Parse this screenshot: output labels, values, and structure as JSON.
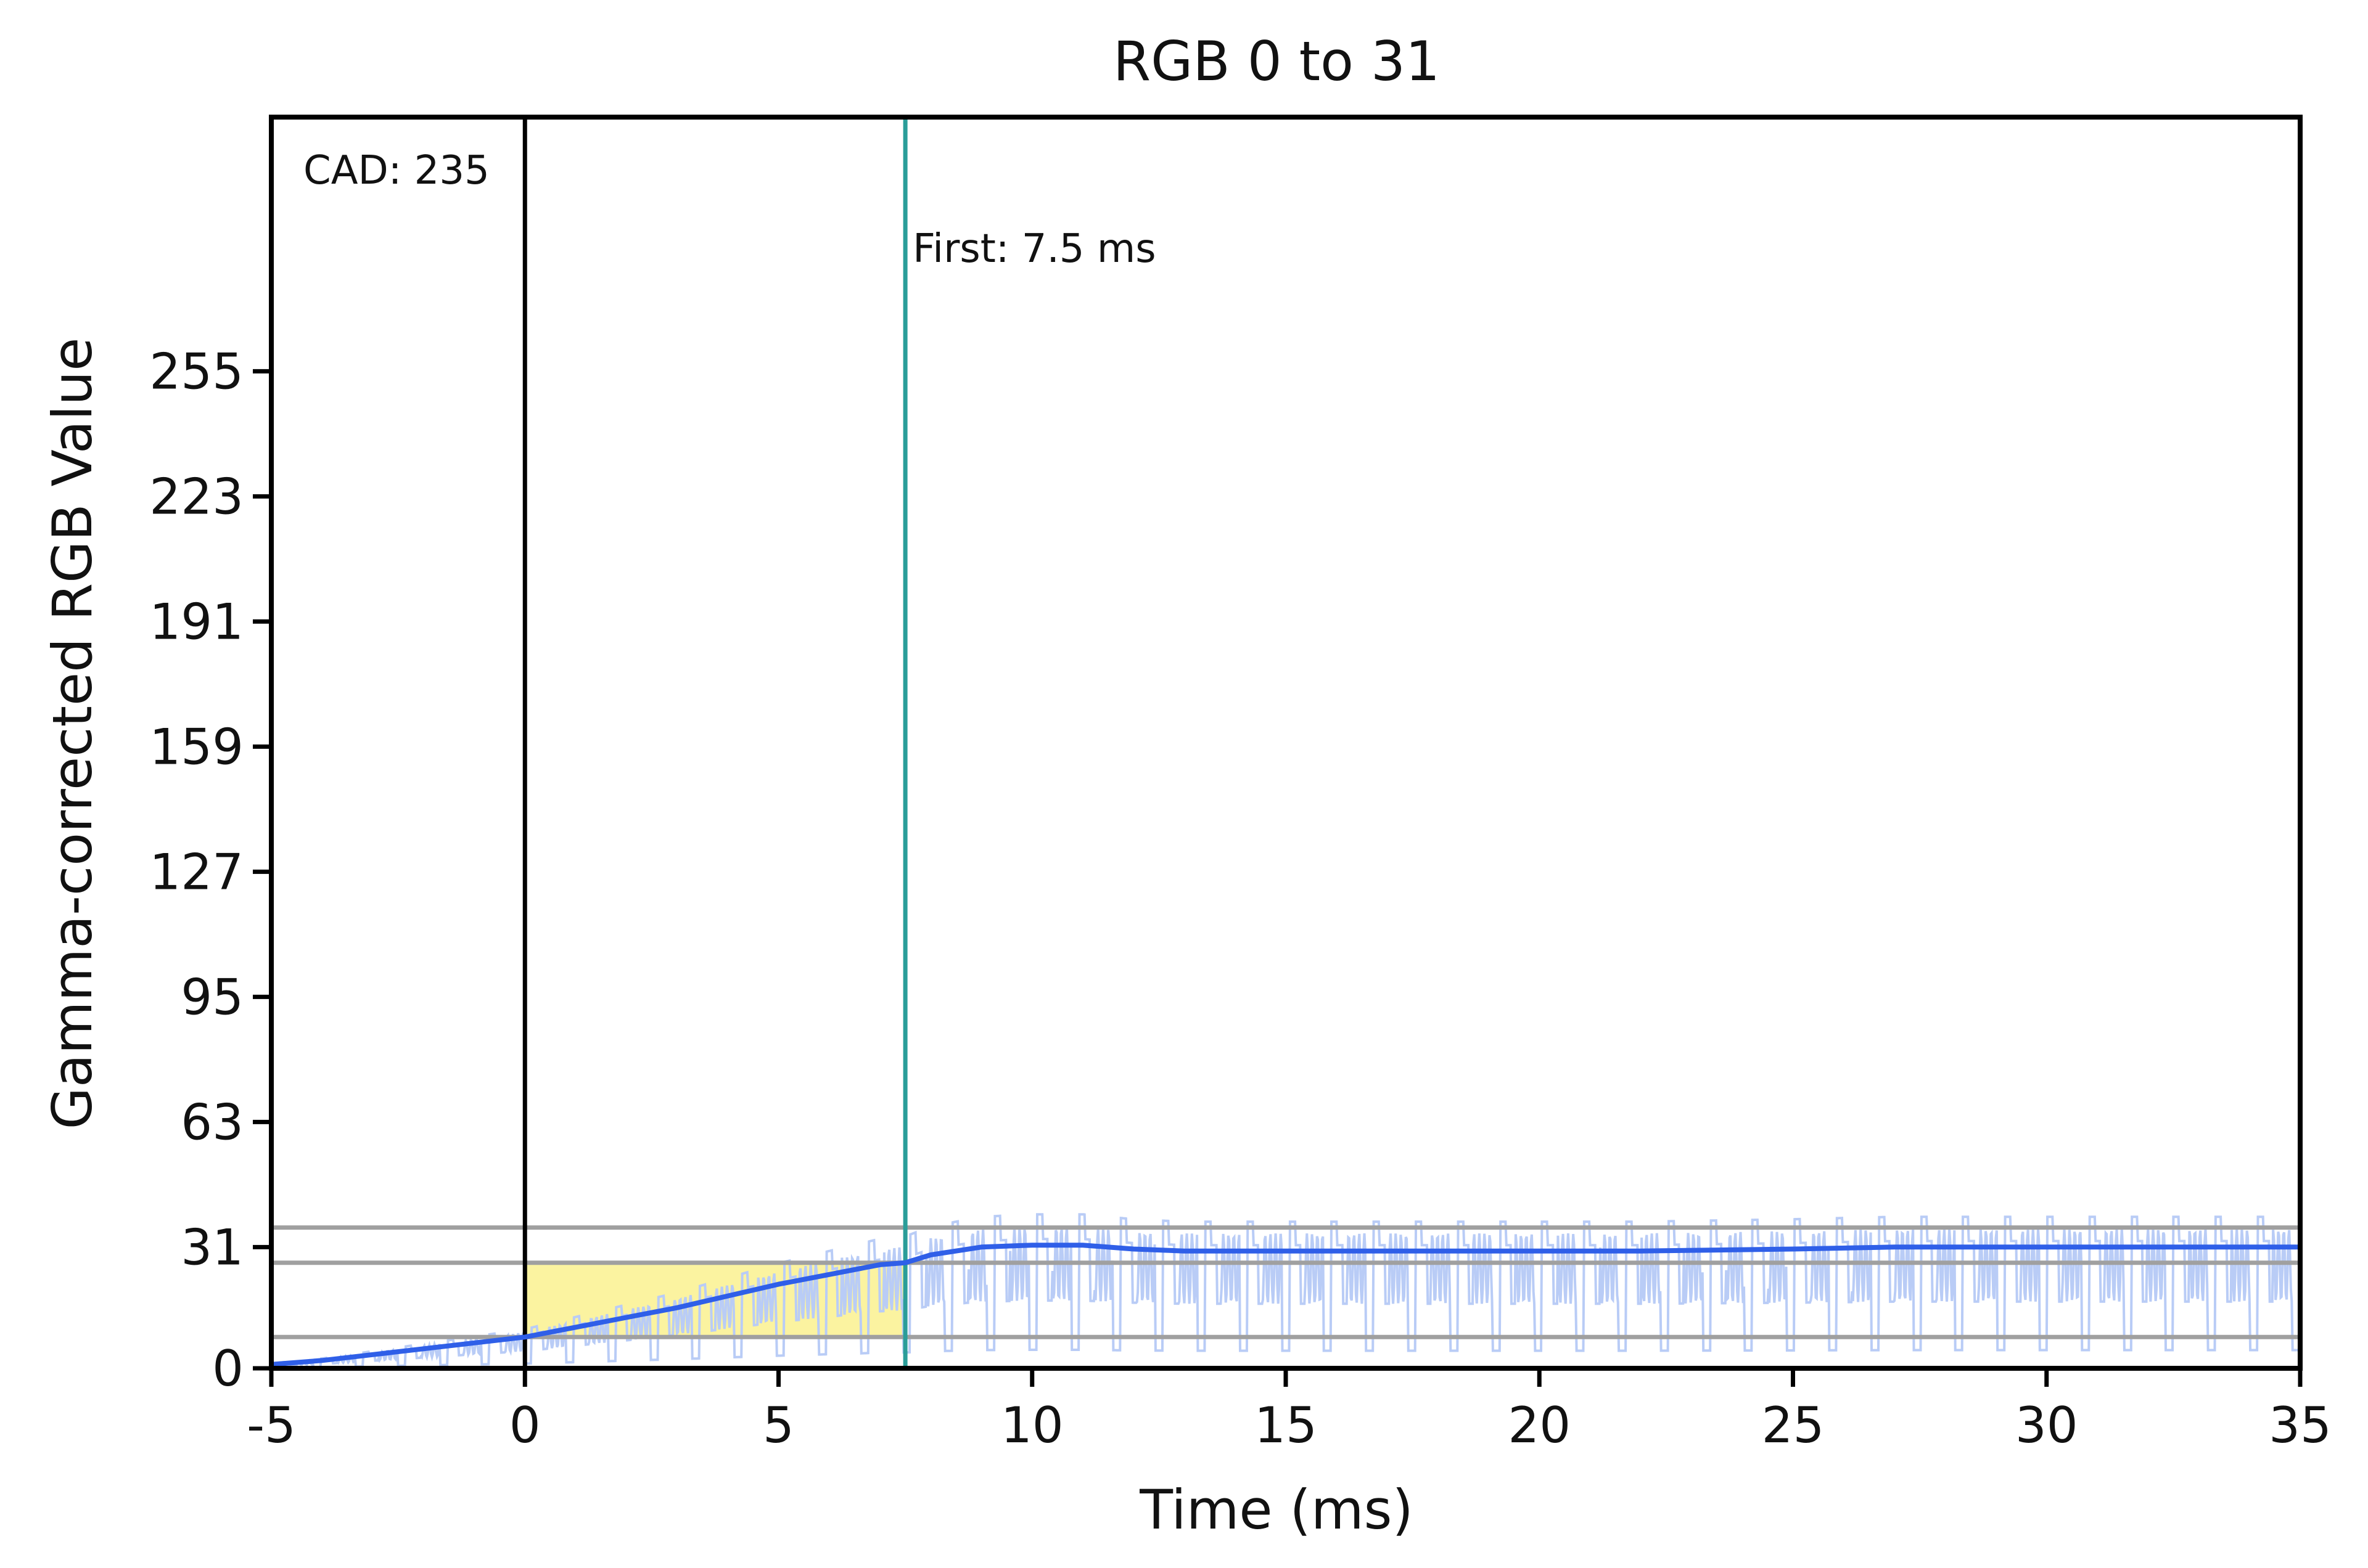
{
  "chart_data": {
    "type": "line",
    "title": "RGB 0 to 31",
    "xlabel": "Time (ms)",
    "ylabel": "Gamma-corrected RGB Value",
    "xlim": [
      -5,
      35
    ],
    "ylim": [
      0,
      320
    ],
    "x_ticks": [
      -5,
      0,
      5,
      10,
      15,
      20,
      25,
      30,
      35
    ],
    "y_ticks": [
      0,
      31,
      63,
      95,
      127,
      159,
      191,
      223,
      255
    ],
    "grid": false,
    "legend": "none",
    "annotations": {
      "cad_label": "CAD: 235",
      "first_label": "First: 7.5 ms",
      "first_time_ms": 7.5,
      "start_marker_ms": 0
    },
    "reference_lines": [
      8,
      27,
      36
    ],
    "highlight_region": {
      "x_start": 0,
      "x_end": 7.5,
      "y_low": 8,
      "y_high": 27
    },
    "series": [
      {
        "values_x": [
          -5,
          -4,
          -3,
          -2,
          -1,
          0,
          1,
          2,
          3,
          4,
          5,
          6,
          7,
          7.5,
          8,
          9,
          10,
          11,
          12,
          13,
          14,
          15,
          17,
          20,
          22,
          25,
          27,
          30,
          32,
          35
        ],
        "values_y": [
          1,
          2,
          3.5,
          5,
          6.5,
          8,
          10.5,
          13,
          15.5,
          18.5,
          21.5,
          24,
          26.5,
          27,
          29,
          31,
          31.5,
          31.5,
          30.5,
          30,
          30,
          30,
          30,
          30,
          30,
          30.5,
          31,
          31,
          31,
          31
        ]
      }
    ],
    "raw_signal": {
      "period_ms": 0.83,
      "peak": 40,
      "dip": 6
    },
    "colors": {
      "main_line": "#2f5fe8",
      "raw_trace": "#b9ccf6",
      "first_marker": "#2a9d99",
      "start_marker": "#000000",
      "reference_line": "#a0a0a0",
      "highlight": "#fbf3a0",
      "frame": "#000000"
    }
  }
}
